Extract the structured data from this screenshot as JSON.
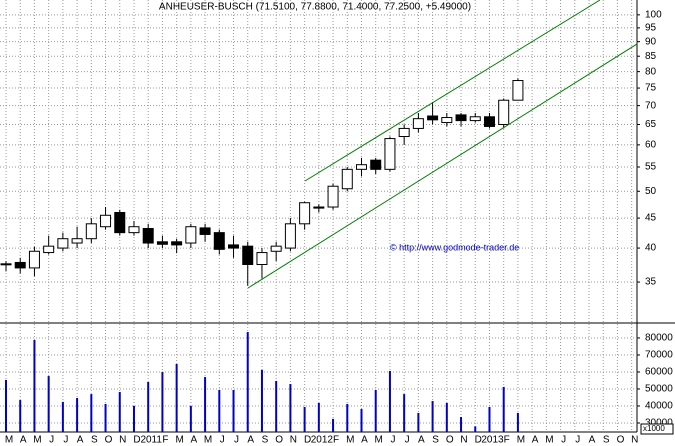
{
  "chart_data": [
    {
      "type": "candlestick",
      "title": "ANHEUSER-BUSCH (71.5100, 77.8800, 71.4000, 77.2500, +5.49000)",
      "annotation": "© http://www.godmode-trader.de",
      "categories": [
        "M",
        "A",
        "M",
        "J",
        "J",
        "A",
        "S",
        "O",
        "N",
        "D",
        "2011",
        "F",
        "M",
        "A",
        "M",
        "J",
        "J",
        "A",
        "S",
        "O",
        "N",
        "D",
        "2012",
        "F",
        "M",
        "A",
        "M",
        "J",
        "J",
        "A",
        "S",
        "O",
        "N",
        "D",
        "2013",
        "F",
        "M",
        "A",
        "M",
        "J",
        "J",
        "A",
        "S",
        "O",
        "N"
      ],
      "open": [
        37.6,
        37.8,
        37.0,
        39.3,
        40.0,
        40.8,
        41.5,
        43.5,
        46.0,
        42.5,
        43.2,
        41.0,
        41.0,
        40.8,
        43.3,
        42.5,
        40.5,
        40.3,
        37.5,
        39.5,
        40.0,
        44.0,
        47.0,
        47.0,
        50.5,
        54.5,
        56.5,
        54.5,
        62.0,
        64.0,
        67.2,
        65.5,
        67.5,
        66.0,
        67.0,
        65.0,
        71.51,
        null,
        null,
        null,
        null,
        null,
        null,
        null,
        null
      ],
      "high": [
        38,
        38.5,
        40.2,
        42,
        42.5,
        43.5,
        45,
        47,
        46.5,
        44.5,
        44,
        42,
        41.5,
        44,
        44,
        43,
        42,
        41,
        40,
        41,
        45,
        48,
        47.5,
        51.5,
        55,
        57,
        57,
        62,
        65,
        68,
        71,
        68,
        68,
        68,
        68,
        72,
        77.88,
        null,
        null,
        null,
        null,
        null,
        null,
        null,
        null
      ],
      "low": [
        36.5,
        36.2,
        35.8,
        39,
        39.5,
        40,
        40.8,
        43,
        42,
        42,
        40,
        40,
        39.2,
        40,
        41,
        39,
        38.5,
        34.5,
        35.5,
        38,
        39.5,
        43,
        46,
        46.5,
        50,
        53,
        53.5,
        54,
        60,
        63,
        65,
        64.5,
        64.5,
        65.5,
        64,
        64,
        71.4,
        null,
        null,
        null,
        null,
        null,
        null,
        null,
        null
      ],
      "close": [
        37.6,
        37.0,
        39.5,
        40.3,
        41.5,
        41.5,
        44.0,
        45.5,
        42.5,
        43.5,
        40.8,
        40.6,
        40.5,
        43.5,
        42.2,
        39.8,
        40.0,
        37.5,
        39.3,
        40.3,
        44.0,
        47.8,
        46.8,
        51.0,
        54.5,
        55.5,
        54.5,
        61.5,
        64.0,
        66.5,
        66.2,
        66.8,
        66.0,
        67.0,
        64.5,
        71.5,
        77.25,
        null,
        null,
        null,
        null,
        null,
        null,
        null,
        null
      ],
      "up_color": "#ffffff",
      "down_color": "#000000",
      "log_scale": true,
      "grid": true,
      "ylim": [
        29.8,
        106
      ],
      "yticks": [
        35,
        40,
        45,
        50,
        55,
        60,
        65,
        70,
        75,
        80,
        85,
        90,
        95,
        100
      ]
    },
    {
      "type": "bar",
      "values": [
        55300,
        43500,
        78800,
        57600,
        42400,
        44700,
        47000,
        41200,
        48200,
        40000,
        54100,
        60000,
        64700,
        40000,
        57000,
        49400,
        49400,
        83500,
        61200,
        54700,
        52900,
        39400,
        41800,
        32400,
        41200,
        38200,
        49400,
        60600,
        47000,
        35900,
        42900,
        41800,
        33500,
        28000,
        39400,
        51200,
        35900,
        null,
        null,
        null,
        null,
        null,
        null,
        null,
        null
      ],
      "color": "#0000c8",
      "grid": true,
      "unit_label": "x1000",
      "ylim": [
        24700,
        88800
      ],
      "yticks": [
        30000,
        40000,
        50000,
        60000,
        70000,
        80000
      ]
    }
  ]
}
